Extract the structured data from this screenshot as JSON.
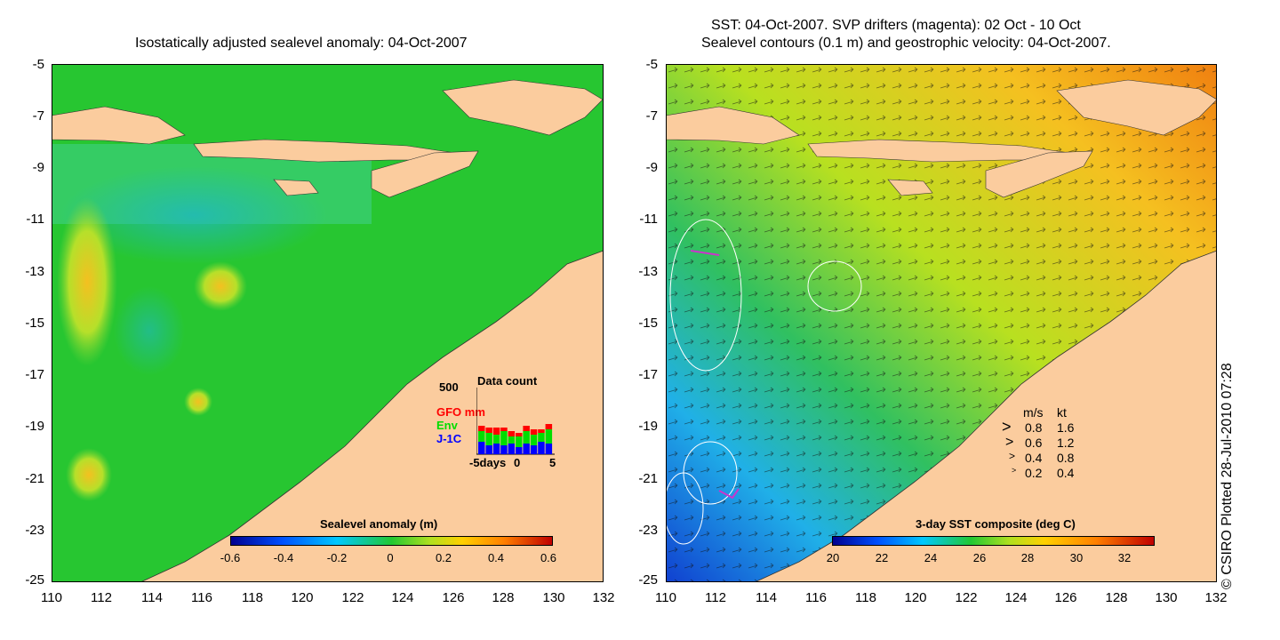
{
  "left_panel": {
    "title": "Isostatically adjusted sealevel anomaly: 04-Oct-2007",
    "y_ticks": [
      "-5",
      "-7",
      "-9",
      "-11",
      "-13",
      "-15",
      "-17",
      "-19",
      "-21",
      "-23",
      "-25"
    ],
    "x_ticks": [
      "110",
      "112",
      "114",
      "116",
      "118",
      "120",
      "122",
      "124",
      "126",
      "128",
      "130",
      "132"
    ],
    "colorbar": {
      "title": "Sealevel anomaly (m)",
      "ticks": [
        "-0.6",
        "-0.4",
        "-0.2",
        "0",
        "0.2",
        "0.4",
        "0.6"
      ]
    },
    "data_count": {
      "title": "Data count",
      "ymax": "500",
      "series_labels": [
        "GFO mm",
        "Env",
        "J-1C"
      ],
      "series_colors": [
        "#ff0000",
        "#00dd00",
        "#0000ff"
      ],
      "x_label_left": "-5days",
      "x_label_mid": "0",
      "x_label_right": "5"
    }
  },
  "right_panel": {
    "title_line1": "SST: 04-Oct-2007. SVP drifters (magenta): 02 Oct - 10 Oct",
    "title_line2": "Sealevel contours (0.1 m) and geostrophic velocity: 04-Oct-2007.",
    "y_ticks": [
      "-5",
      "-7",
      "-9",
      "-11",
      "-13",
      "-15",
      "-17",
      "-19",
      "-21",
      "-23",
      "-25"
    ],
    "x_ticks": [
      "110",
      "112",
      "114",
      "116",
      "118",
      "120",
      "122",
      "124",
      "126",
      "128",
      "130",
      "132"
    ],
    "colorbar": {
      "title": "3-day SST composite (deg C)",
      "ticks": [
        "20",
        "22",
        "24",
        "26",
        "28",
        "30",
        "32"
      ]
    },
    "velocity_legend": {
      "header_ms": "m/s",
      "header_kt": "kt",
      "rows": [
        {
          "ms": "0.8",
          "kt": "1.6"
        },
        {
          "ms": "0.6",
          "kt": "1.2"
        },
        {
          "ms": "0.4",
          "kt": "0.8"
        },
        {
          "ms": "0.2",
          "kt": "0.4"
        }
      ]
    }
  },
  "copyright": "© CSIRO Plotted 28-Jul-2010 07:28",
  "colors": {
    "land": "#fbcc9e",
    "sea_anomaly": "#22cc22",
    "sst_warm": "#f0c020",
    "sst_cool": "#2fc0e8"
  }
}
